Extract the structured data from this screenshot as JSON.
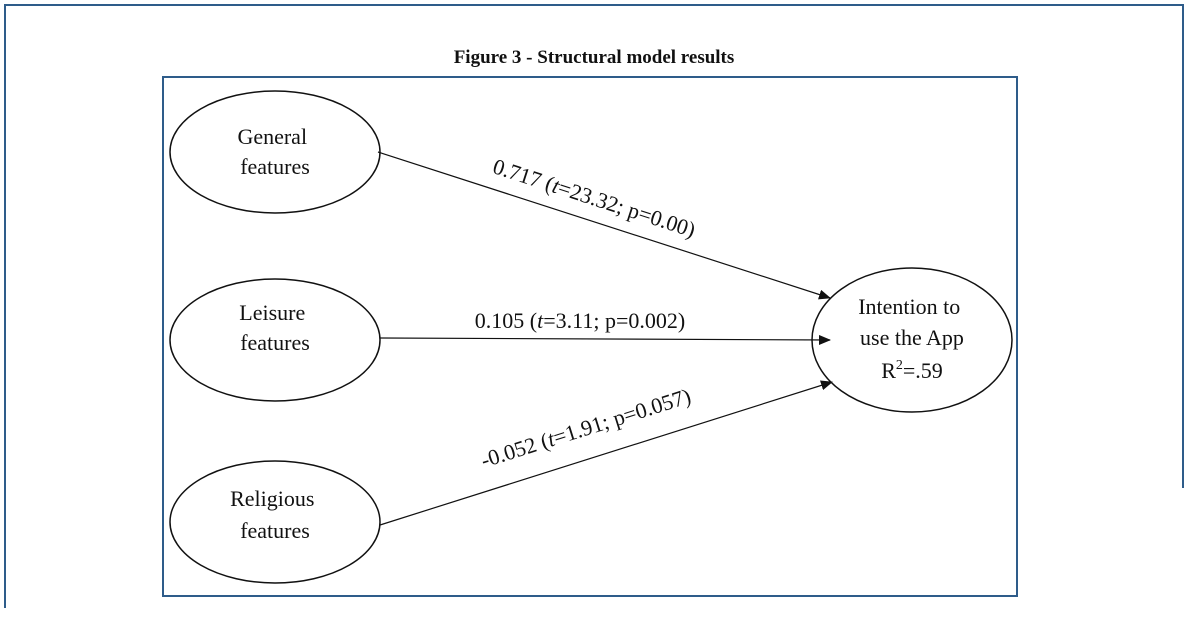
{
  "header": {
    "title": "Figure 3 - Structural model results"
  },
  "nodes": [
    {
      "lines": [
        "General",
        "features"
      ]
    },
    {
      "lines": [
        "Leisure",
        "features"
      ]
    },
    {
      "lines": [
        "Religious",
        "features"
      ]
    },
    {
      "lines": [
        "Intention to",
        "use the App"
      ],
      "r2": {
        "symbol": "R",
        "superscript": "2",
        "value": "=.59"
      }
    }
  ],
  "edges": [
    {
      "label": {
        "before": "0.717 (",
        "italic": "t",
        "after": "=23.32; p=0.00)"
      }
    },
    {
      "label": {
        "before": "0.105 (",
        "italic": "t",
        "after": "=3.11; p=0.002)"
      }
    },
    {
      "label": {
        "before": "-0.052 (",
        "italic": "t",
        "after": "=1.91; p=0.057)"
      }
    }
  ]
}
